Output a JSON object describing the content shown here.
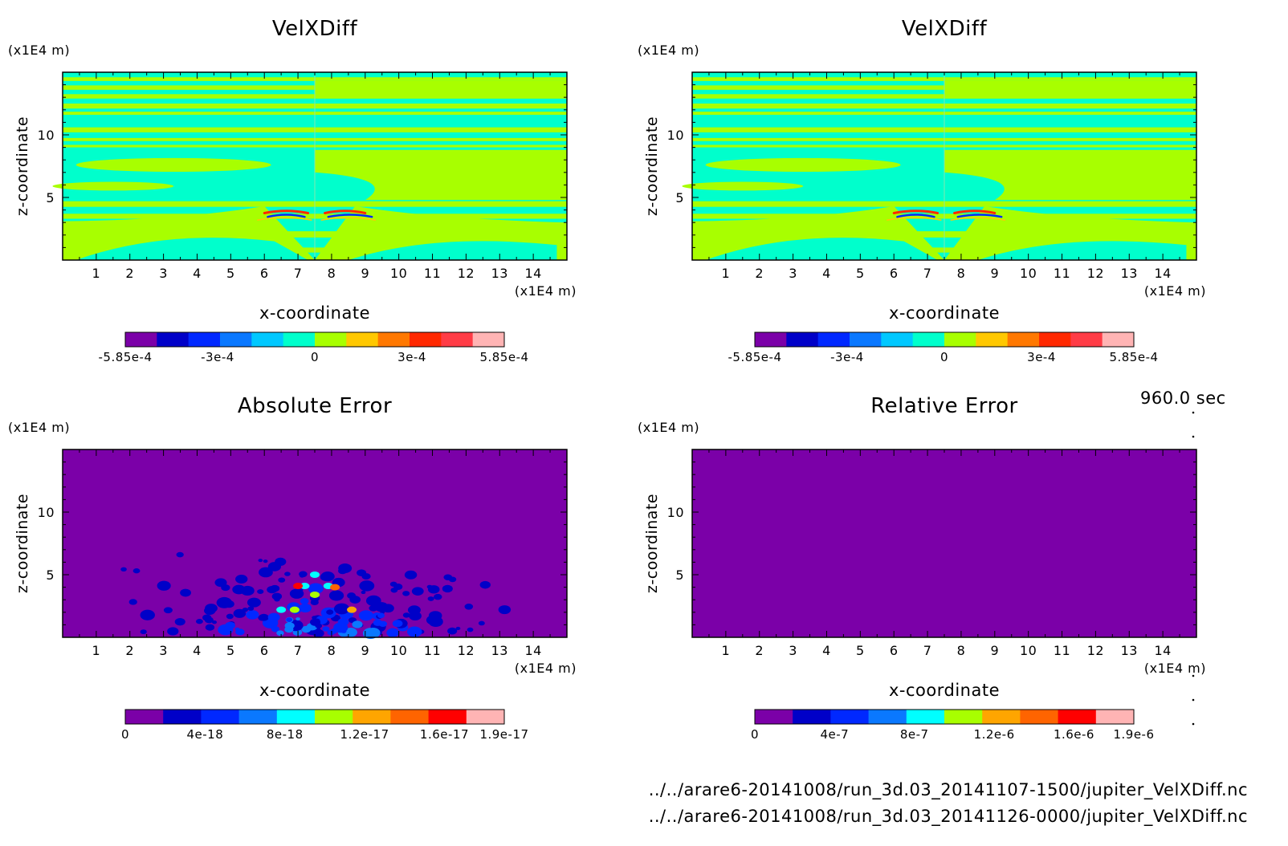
{
  "time_label": "960.0 sec",
  "files": [
    "../../arare6-20141008/run_3d.03_20141107-1500/jupiter_VelXDiff.nc",
    "../../arare6-20141008/run_3d.03_20141126-0000/jupiter_VelXDiff.nc"
  ],
  "colors": {
    "velx_palette": [
      "#7b00a8",
      "#0000c8",
      "#0028ff",
      "#0a78ff",
      "#00c8ff",
      "#00ffcc",
      "#a8ff00",
      "#ffc800",
      "#ff7800",
      "#ff2800",
      "#ff3c46",
      "#ffb4b4"
    ],
    "err_palette": [
      "#7b00a8",
      "#0000c8",
      "#0028ff",
      "#0a78ff",
      "#00ffff",
      "#a8ff00",
      "#ffa500",
      "#ff6400",
      "#ff0000",
      "#ffb4b4"
    ]
  },
  "chart_data": [
    {
      "id": "velx-left",
      "type": "heatmap",
      "title": "VelXDiff",
      "xlabel": "x-coordinate",
      "ylabel": "z-coordinate",
      "x_unit": "(x1E4 m)",
      "y_unit": "(x1E4 m)",
      "xlim": [
        0,
        15
      ],
      "ylim": [
        0,
        15
      ],
      "x_ticks": [
        1,
        2,
        3,
        4,
        5,
        6,
        7,
        8,
        9,
        10,
        11,
        12,
        13,
        14
      ],
      "y_ticks": [
        5,
        10
      ],
      "colorbar": {
        "min": -0.000585,
        "max": 0.000585,
        "levels": 12,
        "tick_values": [
          -0.000585,
          -0.0003,
          0,
          0.0003,
          0.000585
        ],
        "tick_labels": [
          "-5.85e-4",
          "-3e-4",
          "0",
          "3e-4",
          "5.85e-4"
        ]
      }
    },
    {
      "id": "velx-right",
      "type": "heatmap",
      "title": "VelXDiff",
      "xlabel": "x-coordinate",
      "ylabel": "z-coordinate",
      "x_unit": "(x1E4 m)",
      "y_unit": "(x1E4 m)",
      "xlim": [
        0,
        15
      ],
      "ylim": [
        0,
        15
      ],
      "x_ticks": [
        1,
        2,
        3,
        4,
        5,
        6,
        7,
        8,
        9,
        10,
        11,
        12,
        13,
        14
      ],
      "y_ticks": [
        5,
        10
      ],
      "colorbar": {
        "min": -0.000585,
        "max": 0.000585,
        "levels": 12,
        "tick_values": [
          -0.000585,
          -0.0003,
          0,
          0.0003,
          0.000585
        ],
        "tick_labels": [
          "-5.85e-4",
          "-3e-4",
          "0",
          "3e-4",
          "5.85e-4"
        ]
      }
    },
    {
      "id": "abs-error",
      "type": "heatmap",
      "title": "Absolute Error",
      "xlabel": "x-coordinate",
      "ylabel": "z-coordinate",
      "x_unit": "(x1E4 m)",
      "y_unit": "(x1E4 m)",
      "xlim": [
        0,
        15
      ],
      "ylim": [
        0,
        15
      ],
      "x_ticks": [
        1,
        2,
        3,
        4,
        5,
        6,
        7,
        8,
        9,
        10,
        11,
        12,
        13,
        14
      ],
      "y_ticks": [
        5,
        10
      ],
      "colorbar": {
        "min": 0,
        "max": 1.9e-17,
        "levels": 10,
        "tick_values": [
          0,
          4e-18,
          8e-18,
          1.2e-17,
          1.6e-17,
          1.9e-17
        ],
        "tick_labels": [
          "0",
          "4e-18",
          "8e-18",
          "1.2e-17",
          "1.6e-17",
          "1.9e-17"
        ]
      }
    },
    {
      "id": "rel-error",
      "type": "heatmap",
      "title": "Relative Error",
      "xlabel": "x-coordinate",
      "ylabel": "z-coordinate",
      "x_unit": "(x1E4 m)",
      "y_unit": "(x1E4 m)",
      "xlim": [
        0,
        15
      ],
      "ylim": [
        0,
        15
      ],
      "x_ticks": [
        1,
        2,
        3,
        4,
        5,
        6,
        7,
        8,
        9,
        10,
        11,
        12,
        13,
        14
      ],
      "y_ticks": [
        5,
        10
      ],
      "colorbar": {
        "min": 0,
        "max": 1.9e-06,
        "levels": 10,
        "tick_values": [
          0,
          4e-07,
          8e-07,
          1.2e-06,
          1.6e-06,
          1.9e-06
        ],
        "tick_labels": [
          "0",
          "4e-7",
          "8e-7",
          "1.2e-6",
          "1.6e-6",
          "1.9e-6"
        ]
      }
    }
  ]
}
